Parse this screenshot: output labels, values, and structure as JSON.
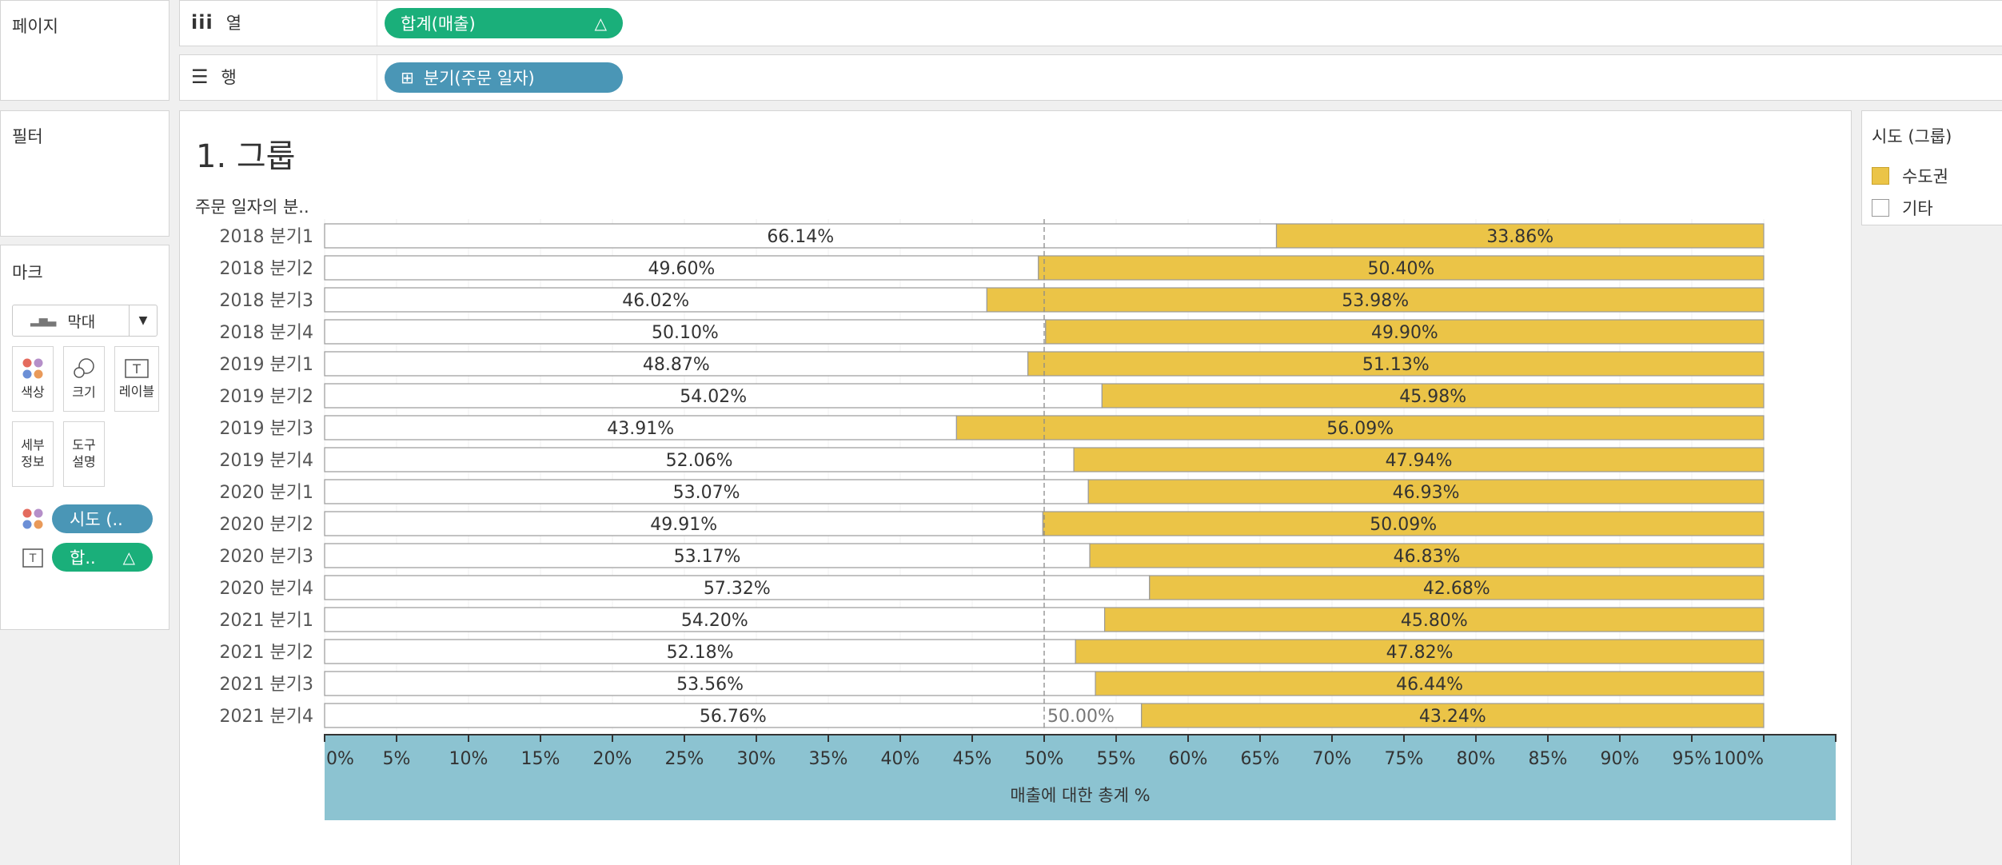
{
  "shelves": {
    "pages_label": "페이지",
    "columns_label": "열",
    "rows_label": "행",
    "columns_pill": "합계(매출)",
    "rows_pill": "분기(주문 일자)"
  },
  "filters_label": "필터",
  "marks": {
    "title": "마크",
    "type": "막대",
    "buttons": {
      "color": "색상",
      "size": "크기",
      "label": "레이블",
      "detail": "세부\n정보",
      "tooltip": "도구\n설명"
    },
    "pill_color": "시도 (..",
    "pill_label": "합.."
  },
  "legend": {
    "title": "시도 (그룹)",
    "items": [
      {
        "name": "수도권",
        "color": "#ebc447"
      },
      {
        "name": "기타",
        "color": "#ffffff"
      }
    ]
  },
  "colors": {
    "capital": "#ebc447",
    "other": "#ffffff",
    "axis_bg": "#8cc3d1",
    "pill_green": "#1aaf7a",
    "pill_blue": "#4a96b6"
  },
  "chart_data": {
    "type": "bar",
    "title": "1. 그룹",
    "row_header": "주문 일자의 분..",
    "xlabel": "매출에 대한 총계 %",
    "xlim": [
      0,
      100
    ],
    "x_ticks": [
      "0%",
      "5%",
      "10%",
      "15%",
      "20%",
      "25%",
      "30%",
      "35%",
      "40%",
      "45%",
      "50%",
      "55%",
      "60%",
      "65%",
      "70%",
      "75%",
      "80%",
      "85%",
      "90%",
      "95%",
      "100%"
    ],
    "reference_line": {
      "value": 50,
      "label": "50.00%"
    },
    "categories": [
      "2018 분기1",
      "2018 분기2",
      "2018 분기3",
      "2018 분기4",
      "2019 분기1",
      "2019 분기2",
      "2019 분기3",
      "2019 분기4",
      "2020 분기1",
      "2020 분기2",
      "2020 분기3",
      "2020 분기4",
      "2021 분기1",
      "2021 분기2",
      "2021 분기3",
      "2021 분기4"
    ],
    "series": [
      {
        "name": "기타",
        "values": [
          66.14,
          49.6,
          46.02,
          50.1,
          48.87,
          54.02,
          43.91,
          52.06,
          53.07,
          49.91,
          53.17,
          57.32,
          54.2,
          52.18,
          53.56,
          56.76
        ],
        "labels": [
          "66.14%",
          "49.60%",
          "46.02%",
          "50.10%",
          "48.87%",
          "54.02%",
          "43.91%",
          "52.06%",
          "53.07%",
          "49.91%",
          "53.17%",
          "57.32%",
          "54.20%",
          "52.18%",
          "53.56%",
          "56.76%"
        ]
      },
      {
        "name": "수도권",
        "values": [
          33.86,
          50.4,
          53.98,
          49.9,
          51.13,
          45.98,
          56.09,
          47.94,
          46.93,
          50.09,
          46.83,
          42.68,
          45.8,
          47.82,
          46.44,
          43.24
        ],
        "labels": [
          "33.86%",
          "50.40%",
          "53.98%",
          "49.90%",
          "51.13%",
          "45.98%",
          "56.09%",
          "47.94%",
          "46.93%",
          "50.09%",
          "46.83%",
          "42.68%",
          "45.80%",
          "47.82%",
          "46.44%",
          "43.24%"
        ]
      }
    ],
    "grid": true,
    "legend_position": "right"
  }
}
